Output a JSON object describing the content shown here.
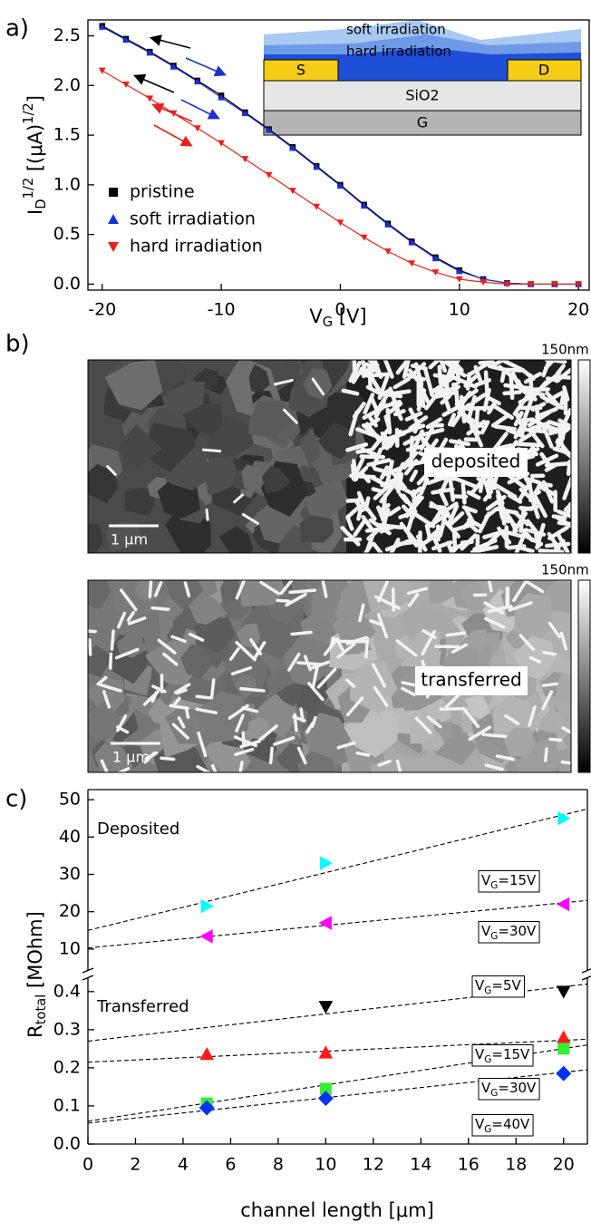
{
  "panel_labels": [
    "a)",
    "b)",
    "c)"
  ],
  "chart_data": [
    {
      "type": "line",
      "x": [
        -20,
        -18,
        -16,
        -14,
        -12,
        -10,
        -8,
        -6,
        -4,
        -2,
        0,
        2,
        4,
        6,
        8,
        10,
        12,
        14,
        16,
        18,
        20
      ],
      "xlim": [
        -21.2,
        20.9
      ],
      "xticks": [
        -20,
        -10,
        0,
        10,
        20
      ],
      "ylim": [
        -0.06,
        2.66
      ],
      "yticks": [
        {
          "value": 0,
          "label": "0.0"
        },
        0.5,
        {
          "value": 1,
          "label": "1.0"
        },
        1.5,
        {
          "value": 2,
          "label": "2.0"
        },
        2.5
      ],
      "xlabel": "VG [V]",
      "ylabel": "ID1/2 [(μA)1/2]",
      "legend": "lower left",
      "series": [
        {
          "name": "pristine",
          "color": "#000000",
          "marker": "square",
          "values": [
            2.6,
            2.47,
            2.34,
            2.2,
            2.05,
            1.9,
            1.73,
            1.56,
            1.38,
            1.19,
            1.0,
            0.8,
            0.61,
            0.43,
            0.27,
            0.14,
            0.05,
            0.01,
            0,
            0,
            0
          ]
        },
        {
          "name": "soft irradiation",
          "color": "#1f2fd0",
          "marker": "triangle-up",
          "values": [
            2.59,
            2.46,
            2.33,
            2.19,
            2.04,
            1.88,
            1.72,
            1.55,
            1.37,
            1.18,
            0.99,
            0.79,
            0.6,
            0.42,
            0.26,
            0.13,
            0.05,
            0.01,
            0,
            0,
            0
          ]
        },
        {
          "name": "hard irradiation",
          "color": "#e8201c",
          "marker": "triangle-down",
          "values": [
            2.15,
            2.01,
            1.87,
            1.72,
            1.57,
            1.42,
            1.26,
            1.1,
            0.94,
            0.78,
            0.62,
            0.47,
            0.33,
            0.21,
            0.12,
            0.05,
            0.02,
            0,
            0,
            0,
            0
          ]
        }
      ],
      "inset": {
        "soft": "soft irradiation",
        "hard": "hard irradiation",
        "source": "S",
        "drain": "D",
        "oxide": "SiO2",
        "gate": "G"
      }
    },
    {
      "type": "scatter",
      "xlim": [
        0,
        21
      ],
      "xticks": [
        0,
        2,
        4,
        6,
        8,
        10,
        12,
        14,
        16,
        18,
        20
      ],
      "xlabel": "channel length [μm]",
      "ylabel": "Rtotal [MOhm]",
      "panels": [
        {
          "text": "Deposited",
          "ylim": [
            3.9,
            52.7
          ],
          "yticks": [
            10,
            20,
            30,
            40,
            50
          ],
          "series": [
            {
              "name": "VG=15V",
              "color": "#00ffff",
              "marker": "triangle-right",
              "x": [
                5,
                10,
                20
              ],
              "values": [
                21.5,
                33,
                45
              ],
              "fit": {
                "x": [
                  0,
                  21
                ],
                "y": [
                  15,
                  47.5
                ]
              }
            },
            {
              "name": "VG=30V",
              "color": "#ff00ff",
              "marker": "triangle-left",
              "x": [
                5,
                10,
                20
              ],
              "values": [
                13.4,
                17,
                22
              ],
              "fit": {
                "x": [
                  0,
                  21
                ],
                "y": [
                  10.3,
                  23
                ]
              }
            }
          ]
        },
        {
          "text": "Transferred",
          "ylim": [
            0,
            0.44
          ],
          "yticks": [
            {
              "value": 0,
              "label": "0.0"
            },
            0.1,
            0.2,
            0.3,
            0.4
          ],
          "series": [
            {
              "name": "VG=5V",
              "color": "#000000",
              "marker": "triangle-down",
              "x": [
                10,
                20
              ],
              "values": [
                0.36,
                0.4
              ],
              "fit": {
                "x": [
                  0,
                  21
                ],
                "y": [
                  0.27,
                  0.42
                ]
              }
            },
            {
              "name": "VG=15V",
              "color": "#ff1a1a",
              "marker": "triangle-up",
              "x": [
                5,
                10,
                20
              ],
              "values": [
                0.236,
                0.24,
                0.28
              ],
              "fit": {
                "x": [
                  0,
                  21
                ],
                "y": [
                  0.215,
                  0.275
                ]
              }
            },
            {
              "name": "VG=30V",
              "color": "#33ee33",
              "marker": "square",
              "x": [
                5,
                10,
                20
              ],
              "values": [
                0.107,
                0.145,
                0.25
              ],
              "fit": {
                "x": [
                  0,
                  21
                ],
                "y": [
                  0.06,
                  0.26
                ]
              }
            },
            {
              "name": "VG=40V",
              "color": "#0033ee",
              "marker": "diamond",
              "x": [
                5,
                10,
                20
              ],
              "values": [
                0.095,
                0.12,
                0.185
              ],
              "fit": {
                "x": [
                  0,
                  21
                ],
                "y": [
                  0.055,
                  0.195
                ]
              }
            }
          ]
        }
      ]
    }
  ],
  "images": [
    {
      "scale_max": "150nm",
      "scale_bar": "1 μm",
      "label": "deposited"
    },
    {
      "scale_max": "150nm",
      "scale_bar": "1 μm",
      "label": "transferred"
    }
  ]
}
